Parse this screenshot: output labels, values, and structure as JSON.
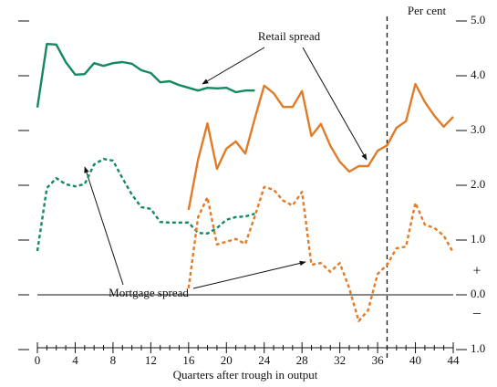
{
  "chart_data": {
    "type": "line",
    "x_label": "Quarters after trough in output",
    "y_unit_label": "Per cent",
    "annotations": [
      "Retail spread",
      "Mortgage spread"
    ],
    "sign_labels": [
      "+",
      "–"
    ],
    "xlim": [
      0,
      44
    ],
    "xticks": [
      0,
      4,
      8,
      12,
      16,
      20,
      24,
      28,
      32,
      36,
      40,
      44
    ],
    "ylim": [
      -1,
      5
    ],
    "yticks": [
      {
        "value": -1,
        "label": "1.0"
      },
      {
        "value": 0,
        "label": "0.0"
      },
      {
        "value": 1,
        "label": "1.0"
      },
      {
        "value": 2,
        "label": "2.0"
      },
      {
        "value": 3,
        "label": "3.0"
      },
      {
        "value": 4,
        "label": "4.0"
      },
      {
        "value": 5,
        "label": "5.0"
      }
    ],
    "zero_line": true,
    "vline_x": 37,
    "series": [
      {
        "color": "#138a5e",
        "dashed": false,
        "x": [
          0,
          1,
          2,
          3,
          4,
          5,
          6,
          7,
          8,
          9,
          10,
          11,
          12,
          13,
          14,
          15,
          16,
          17,
          18,
          19,
          20,
          21,
          22,
          23
        ],
        "values": [
          3.42,
          4.58,
          4.57,
          4.25,
          4.02,
          4.03,
          4.23,
          4.18,
          4.23,
          4.25,
          4.22,
          4.1,
          4.05,
          3.88,
          3.9,
          3.83,
          3.78,
          3.73,
          3.78,
          3.77,
          3.78,
          3.7,
          3.73,
          3.73
        ]
      },
      {
        "color": "#e07b28",
        "dashed": false,
        "x": [
          16,
          17,
          18,
          19,
          20,
          21,
          22,
          23,
          24,
          25,
          26,
          27,
          28,
          29,
          30,
          31,
          32,
          33,
          34,
          35,
          36,
          37,
          38,
          39,
          40,
          41,
          42,
          43,
          44
        ],
        "values": [
          1.55,
          2.47,
          3.13,
          2.3,
          2.67,
          2.8,
          2.58,
          3.22,
          3.82,
          3.68,
          3.43,
          3.43,
          3.72,
          2.9,
          3.12,
          2.72,
          2.43,
          2.25,
          2.35,
          2.35,
          2.63,
          2.73,
          3.05,
          3.17,
          3.85,
          3.52,
          3.27,
          3.07,
          3.25
        ]
      },
      {
        "color": "#138a5e",
        "dashed": true,
        "x": [
          0,
          1,
          2,
          3,
          4,
          5,
          6,
          7,
          8,
          9,
          10,
          11,
          12,
          13,
          14,
          15,
          16,
          17,
          18,
          19,
          20,
          21,
          22,
          23
        ],
        "values": [
          0.8,
          1.95,
          2.13,
          2.02,
          1.98,
          2.02,
          2.38,
          2.48,
          2.45,
          2.13,
          1.83,
          1.6,
          1.57,
          1.33,
          1.32,
          1.32,
          1.32,
          1.13,
          1.12,
          1.22,
          1.37,
          1.42,
          1.43,
          1.48
        ]
      },
      {
        "color": "#e07b28",
        "dashed": true,
        "x": [
          16,
          17,
          18,
          19,
          20,
          21,
          22,
          23,
          24,
          25,
          26,
          27,
          28,
          29,
          30,
          31,
          32,
          33,
          34,
          35,
          36,
          37,
          38,
          39,
          40,
          41,
          42,
          43,
          44
        ],
        "values": [
          0.12,
          1.42,
          1.78,
          0.92,
          0.97,
          1.02,
          0.93,
          1.43,
          1.97,
          1.92,
          1.72,
          1.63,
          1.88,
          0.55,
          0.58,
          0.42,
          0.58,
          0.12,
          -0.48,
          -0.28,
          0.38,
          0.55,
          0.85,
          0.88,
          1.68,
          1.28,
          1.22,
          1.08,
          0.77
        ]
      }
    ]
  }
}
